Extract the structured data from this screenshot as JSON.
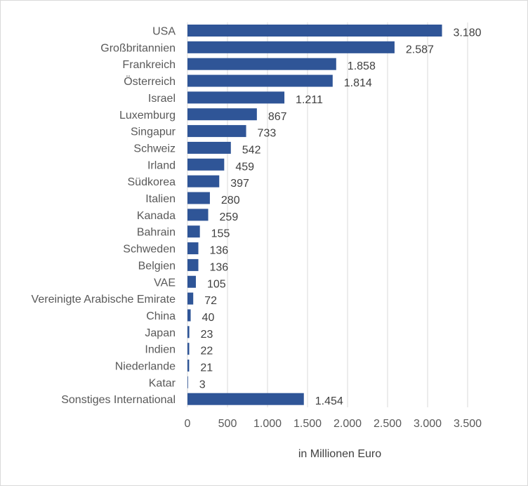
{
  "chart_data": {
    "type": "bar",
    "orientation": "horizontal",
    "categories": [
      "USA",
      "Großbritannien",
      "Frankreich",
      "Österreich",
      "Israel",
      "Luxemburg",
      "Singapur",
      "Schweiz",
      "Irland",
      "Südkorea",
      "Italien",
      "Kanada",
      "Bahrain",
      "Schweden",
      "Belgien",
      "VAE",
      "Vereinigte Arabische Emirate",
      "China",
      "Japan",
      "Indien",
      "Niederlande",
      "Katar",
      "Sonstiges International"
    ],
    "values": [
      3180,
      2587,
      1858,
      1814,
      1211,
      867,
      733,
      542,
      459,
      397,
      280,
      259,
      155,
      136,
      136,
      105,
      72,
      40,
      23,
      22,
      21,
      3,
      1454
    ],
    "value_labels": [
      "3.180",
      "2.587",
      "1.858",
      "1.814",
      "1.211",
      "867",
      "733",
      "542",
      "459",
      "397",
      "280",
      "259",
      "155",
      "136",
      "136",
      "105",
      "72",
      "40",
      "23",
      "22",
      "21",
      "3",
      "1.454"
    ],
    "xlabel": "in Millionen Euro",
    "xlim": [
      0,
      3500
    ],
    "x_ticks": [
      0,
      500,
      1000,
      1500,
      2000,
      2500,
      3000,
      3500
    ],
    "x_tick_labels": [
      "0",
      "500",
      "1.000",
      "1.500",
      "2.000",
      "2.500",
      "3.000",
      "3.500"
    ],
    "grid": "vertical",
    "legend": "none",
    "bar_color": "#2f5597",
    "grid_color": "#d9d9d9"
  }
}
